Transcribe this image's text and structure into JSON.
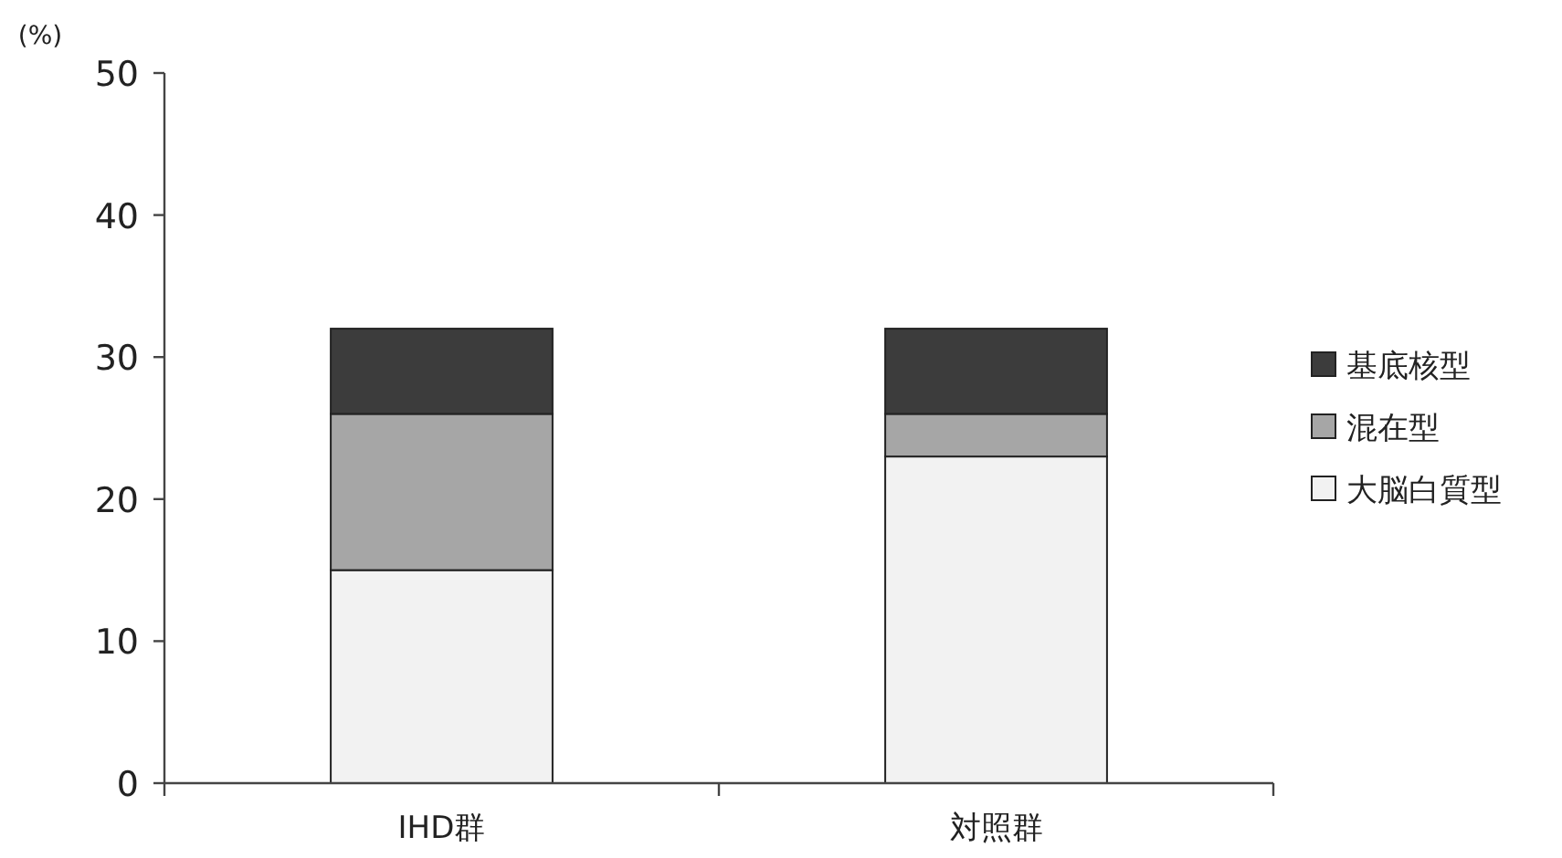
{
  "chart_data": {
    "type": "bar",
    "stacked": true,
    "ylabel": "(%)",
    "categories": [
      "IHD群",
      "対照群"
    ],
    "ylim": [
      0,
      50
    ],
    "yticks": [
      0,
      10,
      20,
      30,
      40,
      50
    ],
    "grid": false,
    "legend": "right",
    "series": [
      {
        "name": "大脳白質型",
        "color": "#f2f2f2",
        "values": [
          15,
          23
        ]
      },
      {
        "name": "混在型",
        "color": "#a6a6a6",
        "values": [
          11,
          3
        ]
      },
      {
        "name": "基底核型",
        "color": "#3c3c3c",
        "values": [
          6,
          6
        ]
      }
    ]
  }
}
